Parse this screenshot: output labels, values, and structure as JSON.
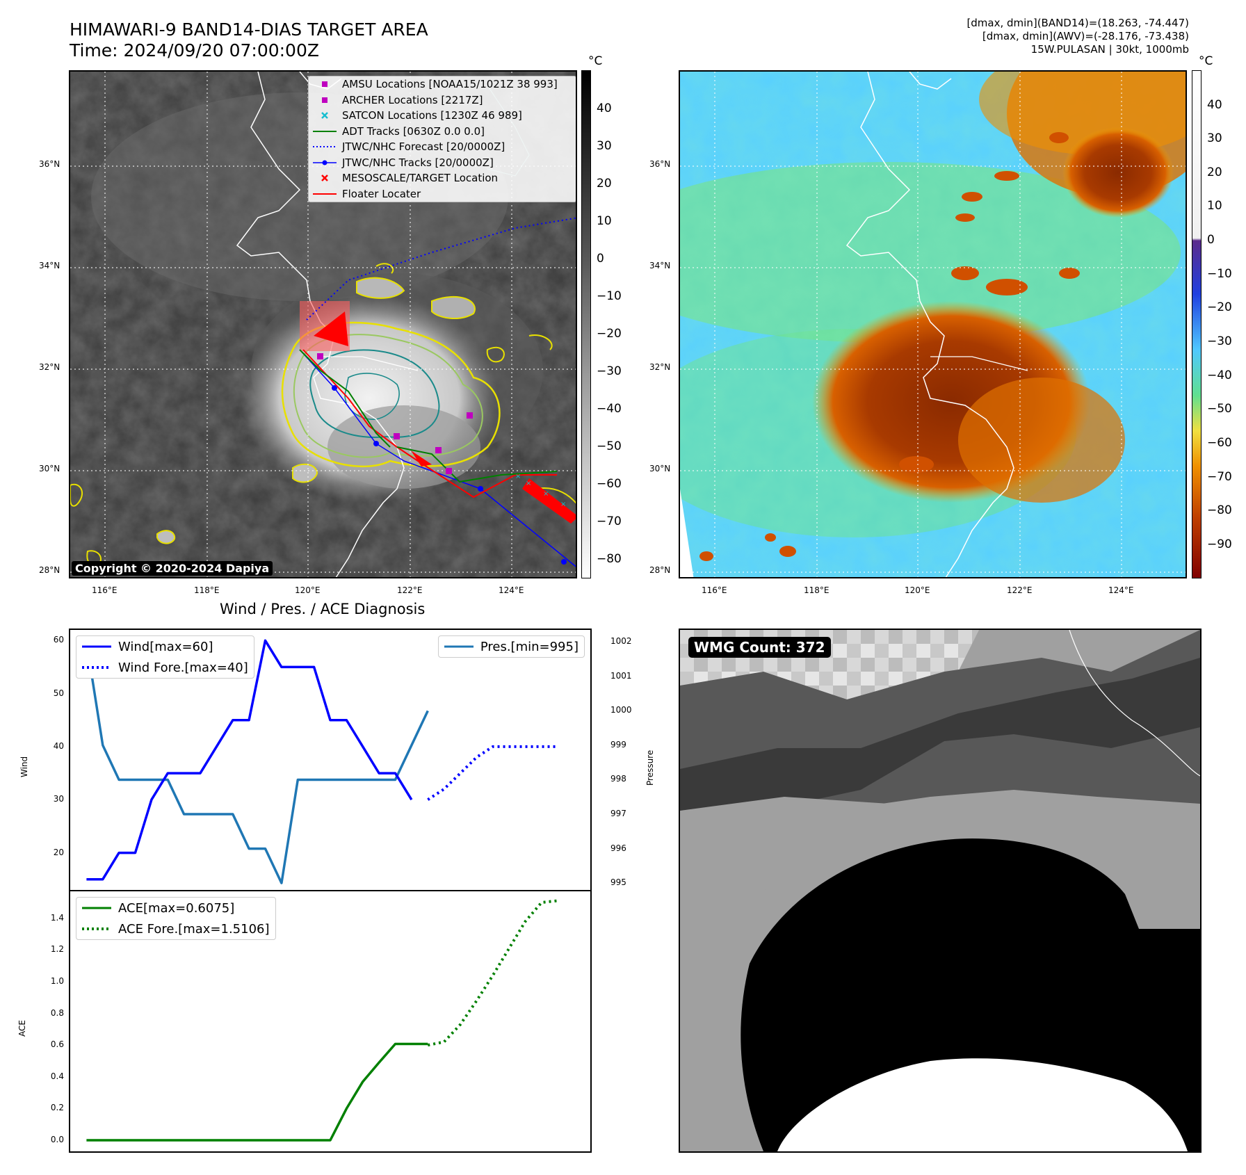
{
  "header": {
    "title_line1": "HIMAWARI-9 BAND14-DIAS TARGET AREA",
    "title_line2": "Time: 2024/09/20 07:00:00Z",
    "info_line1": "[dmax, dmin](BAND14)=(18.263, -74.447)",
    "info_line2": "[dmax, dmin](AWV)=(-28.176, -73.438)",
    "info_line3": "15W.PULASAN | 30kt, 1000mb"
  },
  "map_axes": {
    "lat_labels": [
      "36°N",
      "34°N",
      "32°N",
      "30°N",
      "28°N"
    ],
    "lon_labels": [
      "116°E",
      "118°E",
      "120°E",
      "122°E",
      "124°E"
    ]
  },
  "colorbar_left": {
    "unit": "°C",
    "ticks": [
      "40",
      "30",
      "20",
      "10",
      "0",
      "−10",
      "−20",
      "−30",
      "−40",
      "−50",
      "−60",
      "−70",
      "−80"
    ]
  },
  "colorbar_right": {
    "unit": "°C",
    "ticks": [
      "40",
      "30",
      "20",
      "10",
      "0",
      "−10",
      "−20",
      "−30",
      "−40",
      "−50",
      "−60",
      "−70",
      "−80",
      "−90"
    ]
  },
  "map_legend": [
    {
      "label": "AMSU Locations [NOAA15/1021Z 38 993]",
      "marker": "square",
      "color": "#bf00bf"
    },
    {
      "label": "ARCHER Locations [2217Z]",
      "marker": "square",
      "color": "#bf00bf"
    },
    {
      "label": "SATCON Locations [1230Z 46 989]",
      "marker": "x",
      "color": "#17becf"
    },
    {
      "label": "ADT Tracks [0630Z 0.0 0.0]",
      "marker": "line",
      "color": "#008000"
    },
    {
      "label": "JTWC/NHC Forecast [20/0000Z]",
      "marker": "dotted",
      "color": "#0000ff"
    },
    {
      "label": "JTWC/NHC Tracks [20/0000Z]",
      "marker": "line-dot",
      "color": "#0000ff"
    },
    {
      "label": "MESOSCALE/TARGET Location",
      "marker": "x",
      "color": "#ff0000"
    },
    {
      "label": "Floater Locater",
      "marker": "line",
      "color": "#ff0000"
    }
  ],
  "copyright": "Copyright © 2020-2024 Dapiya",
  "wmg_label": "WMG Count: 372",
  "colors": {
    "wind": "#0000ff",
    "pressure": "#1f77b4",
    "ace": "#008000",
    "track_red": "#ff0000"
  },
  "chart_data": [
    {
      "type": "line",
      "title": "Wind / Pres. / ACE Diagnosis",
      "ylabel": "Wind",
      "ylim": [
        13,
        62
      ],
      "yticks": [
        20,
        30,
        40,
        50,
        60
      ],
      "xlim": [
        -1,
        31
      ],
      "series": [
        {
          "name": "Wind[max=60]",
          "style": "solid",
          "x": [
            0,
            1,
            2,
            3,
            4,
            5,
            6,
            7,
            8,
            9,
            10,
            11,
            12,
            13,
            14,
            15,
            16,
            17,
            18,
            19,
            20
          ],
          "values": [
            15,
            15,
            20,
            20,
            30,
            35,
            35,
            35,
            40,
            45,
            45,
            60,
            55,
            55,
            55,
            45,
            45,
            40,
            35,
            35,
            30
          ]
        },
        {
          "name": "Wind Fore.[max=40]",
          "style": "dotted",
          "x": [
            21,
            22,
            23,
            24,
            25,
            26,
            27,
            28,
            29
          ],
          "values": [
            30,
            32,
            35,
            38,
            40,
            40,
            40,
            40,
            40
          ]
        }
      ]
    },
    {
      "type": "line",
      "ylabel": "Pressure",
      "ylim": [
        994.8,
        1002.35
      ],
      "yticks": [
        995,
        996,
        997,
        998,
        999,
        1000,
        1001,
        1002
      ],
      "series": [
        {
          "name": "Pres.[min=995]",
          "style": "solid",
          "x": [
            0,
            1,
            2,
            3,
            4,
            5,
            6,
            7,
            8,
            9,
            10,
            11,
            12,
            13,
            14,
            15,
            16,
            17,
            18,
            19,
            20,
            21
          ],
          "values": [
            1002,
            999,
            998,
            998,
            998,
            998,
            997,
            997,
            997,
            997,
            996,
            996,
            995,
            998,
            998,
            998,
            998,
            998,
            998,
            998,
            999,
            1000
          ]
        }
      ]
    },
    {
      "type": "line",
      "ylabel": "ACE",
      "ylim": [
        -0.07,
        1.57
      ],
      "yticks": [
        "0.0",
        "0.2",
        "0.4",
        "0.6",
        "0.8",
        "1.0",
        "1.2",
        "1.4"
      ],
      "series": [
        {
          "name": "ACE[max=0.6075]",
          "style": "solid",
          "x": [
            0,
            15,
            16,
            17,
            18,
            19,
            20,
            21
          ],
          "values": [
            0,
            0,
            0.2,
            0.37,
            0.49,
            0.6075,
            0.6075,
            0.6075
          ]
        },
        {
          "name": "ACE Fore.[max=1.5106]",
          "style": "dotted",
          "x": [
            21,
            22,
            23,
            24,
            25,
            26,
            27,
            28,
            29
          ],
          "values": [
            0.6,
            0.62,
            0.73,
            0.88,
            1.04,
            1.21,
            1.38,
            1.5,
            1.5106
          ]
        }
      ]
    }
  ]
}
